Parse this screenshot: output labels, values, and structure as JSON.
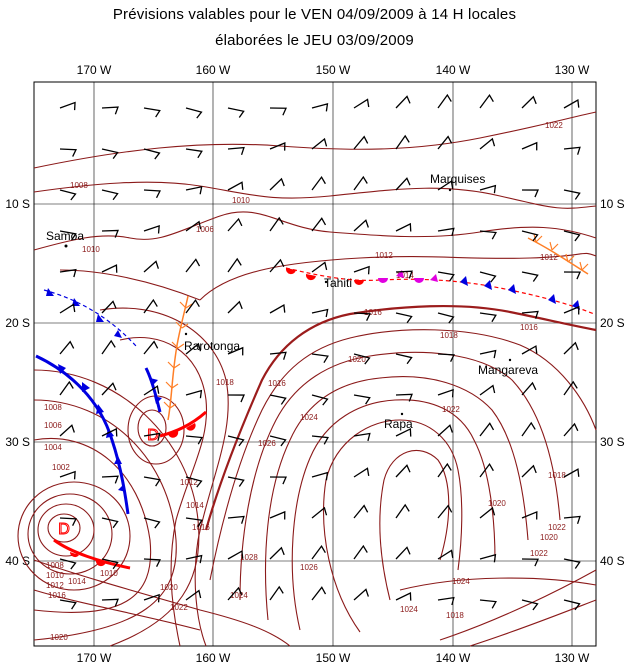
{
  "title_line1": "Prévisions valables pour le  VEN 04/09/2009  à  14 H locales",
  "title_line2": "élaborées le  JEU 03/09/2009",
  "longitude_labels": [
    "170 W",
    "160 W",
    "150 W",
    "140 W",
    "130 W"
  ],
  "latitude_labels": [
    "10 S",
    "20 S",
    "30 S",
    "40 S"
  ],
  "places": {
    "samoa": "Samoa",
    "marquises": "Marquises",
    "tahiti": "Tahiti",
    "rarotonga": "Rarotonga",
    "mangareva": "Mangareva",
    "rapa": "Rapa"
  },
  "lows": [
    {
      "symbol": "D"
    },
    {
      "symbol": "D"
    }
  ],
  "isobar_labels": [
    "1008",
    "1010",
    "1006",
    "1010",
    "1012",
    "1014",
    "1016",
    "1012",
    "1016",
    "1018",
    "1020",
    "1022",
    "1024",
    "1026",
    "1008",
    "1006",
    "1004",
    "1002",
    "1010",
    "1012",
    "1014",
    "1016",
    "1018",
    "1020",
    "1022",
    "1024",
    "1008",
    "1010",
    "1012",
    "1014",
    "1016",
    "1016",
    "1018",
    "1020",
    "1022",
    "1024",
    "1026",
    "1028",
    "1022",
    "1020",
    "1018",
    "1022",
    "1020",
    "1024"
  ],
  "colors": {
    "isobar": "#8b1a1a",
    "cold_front": "#0000e0",
    "warm_front": "#ff0000",
    "occluded_front": "#e000e0",
    "trough": "#ff7f27"
  }
}
